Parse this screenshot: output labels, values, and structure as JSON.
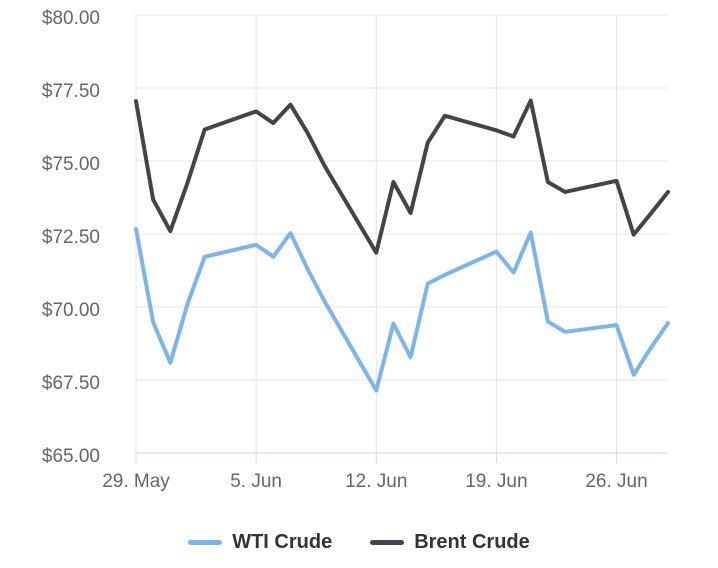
{
  "chart_data": {
    "type": "line",
    "title": "",
    "grid": true,
    "legend_position": "bottom",
    "x_axis": {
      "range_days": [
        0,
        31
      ],
      "ticks": [
        {
          "label": "29. May",
          "day": 0
        },
        {
          "label": "5. Jun",
          "day": 7
        },
        {
          "label": "12. Jun",
          "day": 14
        },
        {
          "label": "19. Jun",
          "day": 21
        },
        {
          "label": "26. Jun",
          "day": 28
        }
      ]
    },
    "y_axis": {
      "range": [
        65,
        80
      ],
      "ticks": [
        {
          "label": "$80.00",
          "value": 80
        },
        {
          "label": "$77.50",
          "value": 77.5
        },
        {
          "label": "$75.00",
          "value": 75
        },
        {
          "label": "$72.50",
          "value": 72.5
        },
        {
          "label": "$70.00",
          "value": 70
        },
        {
          "label": "$67.50",
          "value": 67.5
        },
        {
          "label": "$65.00",
          "value": 65
        }
      ]
    },
    "points": [
      {
        "date": "29 May",
        "day": 0
      },
      {
        "date": "30 May",
        "day": 1
      },
      {
        "date": "31 May",
        "day": 2
      },
      {
        "date": "1 Jun",
        "day": 3
      },
      {
        "date": "2 Jun",
        "day": 4
      },
      {
        "date": "5 Jun",
        "day": 7
      },
      {
        "date": "6 Jun",
        "day": 8
      },
      {
        "date": "7 Jun",
        "day": 9
      },
      {
        "date": "8 Jun",
        "day": 10
      },
      {
        "date": "9 Jun",
        "day": 11
      },
      {
        "date": "12 Jun",
        "day": 14
      },
      {
        "date": "13 Jun",
        "day": 15
      },
      {
        "date": "14 Jun",
        "day": 16
      },
      {
        "date": "15 Jun",
        "day": 17
      },
      {
        "date": "16 Jun",
        "day": 18
      },
      {
        "date": "19 Jun",
        "day": 21
      },
      {
        "date": "20 Jun",
        "day": 22
      },
      {
        "date": "21 Jun",
        "day": 23
      },
      {
        "date": "22 Jun",
        "day": 24
      },
      {
        "date": "23 Jun",
        "day": 25
      },
      {
        "date": "26 Jun",
        "day": 28
      },
      {
        "date": "27 Jun",
        "day": 29
      },
      {
        "date": "28 Jun",
        "day": 30
      },
      {
        "date": "29 Jun",
        "day": 31
      }
    ],
    "series": [
      {
        "name": "WTI Crude",
        "color": "#7cb5ec",
        "values": [
          72.67,
          69.48,
          68.09,
          70.1,
          71.72,
          72.13,
          71.72,
          72.53,
          71.3,
          70.18,
          67.14,
          69.43,
          68.28,
          70.8,
          71.1,
          71.9,
          71.18,
          72.55,
          69.5,
          69.15,
          69.38,
          67.68,
          68.6,
          69.45
        ]
      },
      {
        "name": "Brent Crude",
        "color": "#434348",
        "values": [
          77.05,
          73.68,
          72.6,
          74.25,
          76.08,
          76.7,
          76.3,
          76.93,
          75.96,
          74.82,
          71.86,
          74.28,
          73.22,
          75.63,
          76.55,
          76.05,
          75.84,
          77.07,
          74.28,
          73.94,
          74.32,
          72.48,
          73.2,
          73.94
        ]
      }
    ],
    "colors": {
      "grid": "#e6e6e6",
      "axis_line": "#ccd6eb",
      "tick": "#ccd6eb",
      "axis_label": "#666666",
      "legend_text": "#333333",
      "background": "#ffffff"
    }
  }
}
